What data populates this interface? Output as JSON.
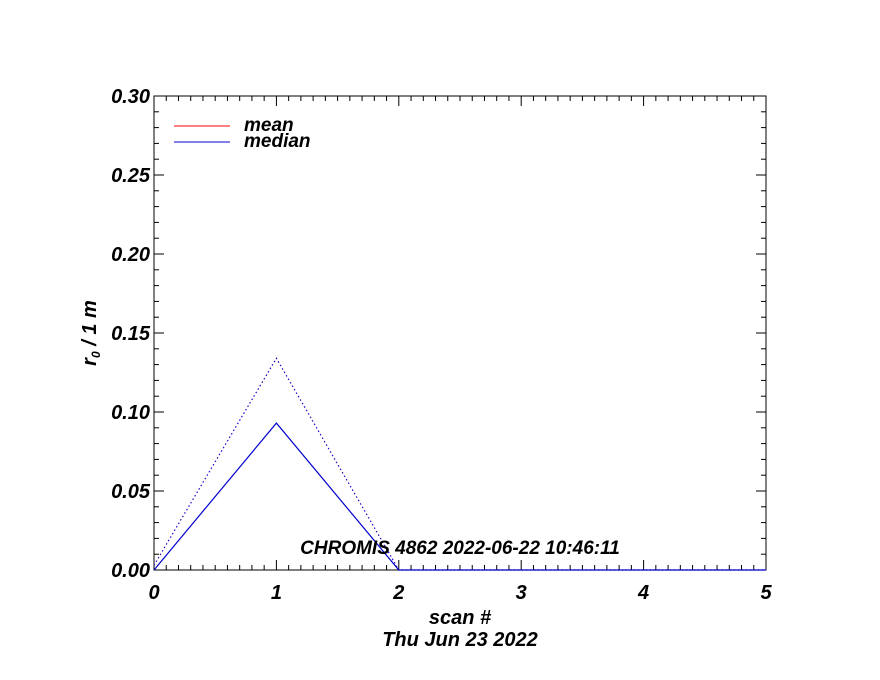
{
  "chart_data": {
    "type": "line",
    "title": "",
    "xlabel": "scan #",
    "ylabel": "r₀ / 1 m",
    "ylabel_main": "r",
    "ylabel_sub": "0",
    "ylabel_rest": " / 1 m",
    "footer": "Thu Jun 23 2022",
    "annotation": "CHROMIS 4862 2022-06-22 10:46:11",
    "xlim": [
      0,
      5
    ],
    "ylim": [
      0,
      0.3
    ],
    "xticks": [
      0,
      1,
      2,
      3,
      4,
      5
    ],
    "xtick_labels": [
      "0",
      "1",
      "2",
      "3",
      "4",
      "5"
    ],
    "yticks": [
      0,
      0.05,
      0.1,
      0.15,
      0.2,
      0.25,
      0.3
    ],
    "ytick_labels": [
      "0.00",
      "0.05",
      "0.10",
      "0.15",
      "0.20",
      "0.25",
      "0.30"
    ],
    "grid": false,
    "legend_position": "top-left",
    "x": [
      0,
      1,
      2,
      3,
      4,
      5
    ],
    "series": [
      {
        "name": "mean",
        "color": "#2a00c8",
        "legend_color": "#ff0000",
        "style": "dotted",
        "values": [
          0.003,
          0.134,
          0.0,
          0.0,
          0.0,
          0.0
        ]
      },
      {
        "name": "median",
        "color": "#0000cc",
        "legend_color": "#0000cc",
        "style": "solid",
        "values": [
          0.0,
          0.093,
          0.0,
          0.0,
          0.0,
          0.0
        ]
      }
    ]
  }
}
